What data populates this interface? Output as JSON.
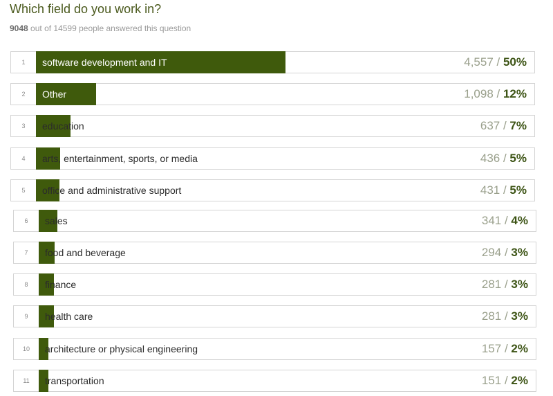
{
  "question": {
    "title": "Which field do you work in?",
    "answered": "9048",
    "answered_suffix": "out of 14599 people answered this question"
  },
  "colors": {
    "bar": "#3f5a0c",
    "title": "#4b5a1e",
    "percent": "#3d5415"
  },
  "chart_data": {
    "type": "bar",
    "orientation": "horizontal",
    "categories": [
      "software development and IT",
      "Other",
      "education",
      "arts, entertainment, sports, or media",
      "office and administrative support",
      "sales",
      "food and beverage",
      "finance",
      "health care",
      "architecture or physical engineering",
      "transportation"
    ],
    "ranks": [
      "1",
      "2",
      "3",
      "4",
      "5",
      "6",
      "7",
      "8",
      "9",
      "10",
      "11"
    ],
    "counts": [
      "4,557",
      "1,098",
      "637",
      "436",
      "431",
      "341",
      "294",
      "281",
      "281",
      "157",
      "151"
    ],
    "percents": [
      "50%",
      "12%",
      "7%",
      "5%",
      "5%",
      "4%",
      "3%",
      "3%",
      "3%",
      "2%",
      "2%"
    ],
    "values": [
      4557,
      1098,
      637,
      436,
      431,
      341,
      294,
      281,
      281,
      157,
      151
    ],
    "total": 9048
  }
}
